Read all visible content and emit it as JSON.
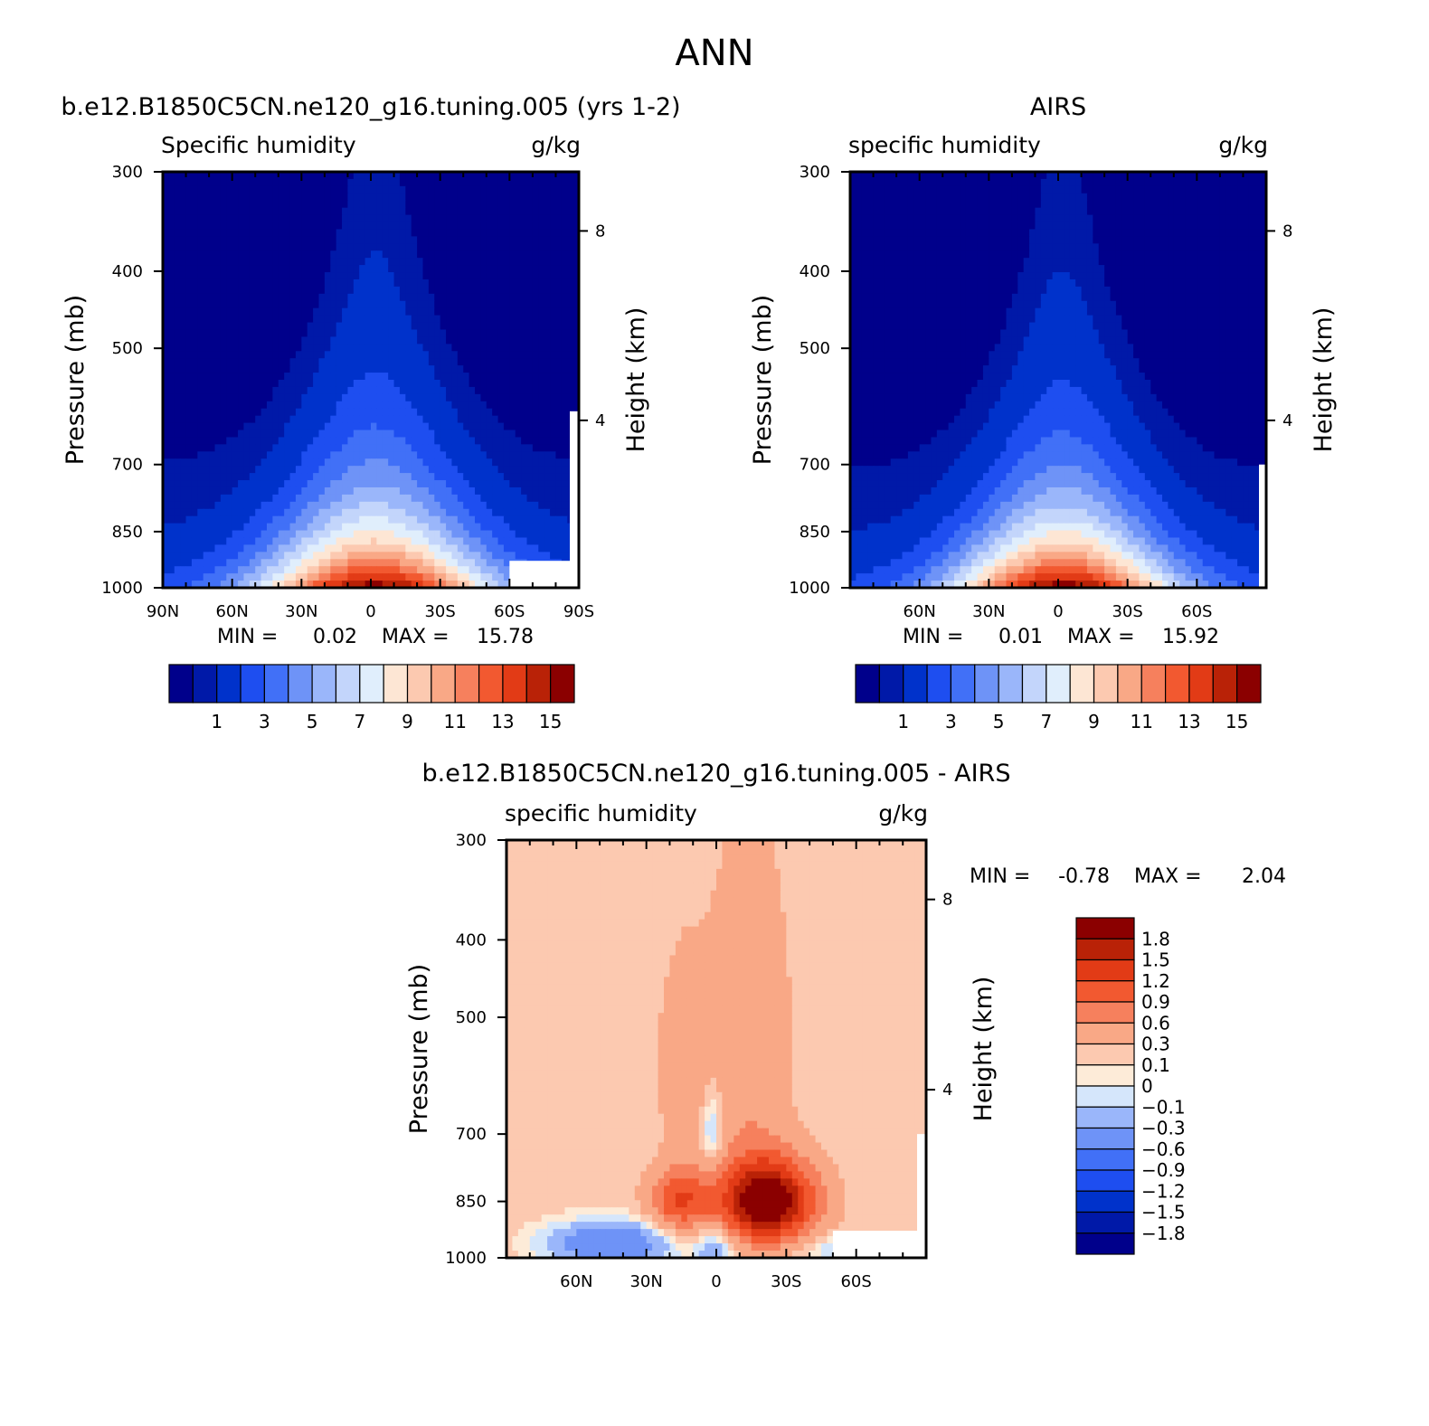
{
  "figure_title": "ANN",
  "chart_data": [
    {
      "type": "heatmap",
      "title": "b.e12.B1850C5CN.ne120_g16.tuning.005 (yrs 1-2)",
      "subtitle_left": "Specific humidity",
      "subtitle_right": "g/kg",
      "ylabel": "Pressure (mb)",
      "ylabel_right": "Height (km)",
      "xticks": [
        "90N",
        "60N",
        "30N",
        "0",
        "30S",
        "60S",
        "90S"
      ],
      "xtick_lats": [
        90,
        60,
        30,
        0,
        -30,
        -60,
        -90
      ],
      "yticks": [
        "300",
        "400",
        "500",
        "700",
        "850",
        "1000"
      ],
      "ytick_values": [
        300,
        400,
        500,
        700,
        850,
        1000
      ],
      "height_ticks": [
        "8",
        "4"
      ],
      "height_tick_pressures": [
        356,
        616
      ],
      "ylim": [
        300,
        1000
      ],
      "xlim": [
        90,
        -90
      ],
      "min_label": "MIN =",
      "min_value": "0.02",
      "max_label": "MAX =",
      "max_value": "15.78",
      "field": {
        "kind": "humidity",
        "peak": 15.78,
        "center_lat": -2,
        "width_surface": 30,
        "width_top": 5,
        "scale_height": 0.32,
        "floor": 0.02
      },
      "colorbar": {
        "orientation": "horizontal",
        "levels": [
          0.5,
          1,
          2,
          3,
          4,
          5,
          6,
          7,
          8,
          9,
          10,
          11,
          12,
          13,
          14,
          15
        ],
        "tick_labels": [
          "1",
          "3",
          "5",
          "7",
          "9",
          "11",
          "13",
          "15"
        ],
        "colors": [
          "#00008b",
          "#0019a8",
          "#0032cb",
          "#1e4ef0",
          "#4170f7",
          "#6e93f7",
          "#9ab6fa",
          "#c3d5fb",
          "#e0eefc",
          "#fde6d4",
          "#fcc9b0",
          "#f9a886",
          "#f6805d",
          "#f25930",
          "#e23b16",
          "#b92207",
          "#8b0000"
        ]
      }
    },
    {
      "type": "heatmap",
      "title": "AIRS",
      "subtitle_left": "specific humidity",
      "subtitle_right": "g/kg",
      "ylabel": "Pressure (mb)",
      "ylabel_right": "Height (km)",
      "xticks": [
        "60N",
        "30N",
        "0",
        "30S",
        "60S"
      ],
      "xtick_lats": [
        60,
        30,
        0,
        -30,
        -60
      ],
      "yticks": [
        "300",
        "400",
        "500",
        "700",
        "850",
        "1000"
      ],
      "ytick_values": [
        300,
        400,
        500,
        700,
        850,
        1000
      ],
      "height_ticks": [
        "8",
        "4"
      ],
      "height_tick_pressures": [
        356,
        616
      ],
      "ylim": [
        300,
        1000
      ],
      "xlim": [
        90,
        -90
      ],
      "min_label": "MIN =",
      "min_value": "0.01",
      "max_label": "MAX =",
      "max_value": "15.92",
      "field": {
        "kind": "humidity",
        "peak": 15.92,
        "center_lat": -2,
        "width_surface": 28,
        "width_top": 4,
        "scale_height": 0.31,
        "floor": 0.01
      },
      "colorbar": {
        "orientation": "horizontal",
        "levels": [
          0.5,
          1,
          2,
          3,
          4,
          5,
          6,
          7,
          8,
          9,
          10,
          11,
          12,
          13,
          14,
          15
        ],
        "tick_labels": [
          "1",
          "3",
          "5",
          "7",
          "9",
          "11",
          "13",
          "15"
        ],
        "colors": [
          "#00008b",
          "#0019a8",
          "#0032cb",
          "#1e4ef0",
          "#4170f7",
          "#6e93f7",
          "#9ab6fa",
          "#c3d5fb",
          "#e0eefc",
          "#fde6d4",
          "#fcc9b0",
          "#f9a886",
          "#f6805d",
          "#f25930",
          "#e23b16",
          "#b92207",
          "#8b0000"
        ]
      }
    },
    {
      "type": "heatmap",
      "title": "b.e12.B1850C5CN.ne120_g16.tuning.005 - AIRS",
      "subtitle_left": "specific humidity",
      "subtitle_right": "g/kg",
      "ylabel": "Pressure (mb)",
      "ylabel_right": "Height (km)",
      "xticks": [
        "60N",
        "30N",
        "0",
        "30S",
        "60S"
      ],
      "xtick_lats": [
        60,
        30,
        0,
        -30,
        -60
      ],
      "yticks": [
        "300",
        "400",
        "500",
        "700",
        "850",
        "1000"
      ],
      "ytick_values": [
        300,
        400,
        500,
        700,
        850,
        1000
      ],
      "height_ticks": [
        "8",
        "4"
      ],
      "height_tick_pressures": [
        356,
        616
      ],
      "ylim": [
        300,
        1000
      ],
      "xlim": [
        90,
        -90
      ],
      "min_label": "MIN =",
      "min_value": "-0.78",
      "max_label": "MAX =",
      "max_value": "2.04",
      "field": {
        "kind": "difference",
        "blobs": [
          {
            "lat": -22,
            "p": 850,
            "amp": 2.04,
            "slat": 14,
            "sp": 70
          },
          {
            "lat": 16,
            "p": 850,
            "amp": 1.0,
            "slat": 9,
            "sp": 55
          },
          {
            "lat": -14,
            "p": 560,
            "amp": 0.4,
            "slat": 12,
            "sp": 200
          },
          {
            "lat": 14,
            "p": 580,
            "amp": 0.3,
            "slat": 8,
            "sp": 130
          },
          {
            "lat": 2,
            "p": 690,
            "amp": -0.5,
            "slat": 3,
            "sp": 60
          },
          {
            "lat": 45,
            "p": 960,
            "amp": -0.78,
            "slat": 20,
            "sp": 45
          },
          {
            "lat": 0,
            "p": 970,
            "amp": -0.5,
            "slat": 6,
            "sp": 40
          },
          {
            "lat": -48,
            "p": 975,
            "amp": -0.3,
            "slat": 10,
            "sp": 30
          }
        ],
        "base": 0.18
      },
      "colorbar": {
        "orientation": "vertical",
        "levels": [
          -1.8,
          -1.5,
          -1.2,
          -0.9,
          -0.6,
          -0.3,
          -0.1,
          0,
          0.1,
          0.3,
          0.6,
          0.9,
          1.2,
          1.5,
          1.8
        ],
        "tick_labels": [
          "1.8",
          "1.5",
          "1.2",
          "0.9",
          "0.6",
          "0.3",
          "0.1",
          "0",
          "-0.1",
          "-0.3",
          "-0.6",
          "-0.9",
          "-1.2",
          "-1.5",
          "-1.8"
        ],
        "colors": [
          "#00008b",
          "#0019a8",
          "#0032cb",
          "#1e4ef0",
          "#4170f7",
          "#6e93f7",
          "#9ab6fa",
          "#d5e6fb",
          "#fdebd8",
          "#fcc9b0",
          "#f9a886",
          "#f6805d",
          "#f25930",
          "#e23b16",
          "#b92207",
          "#8b0000"
        ]
      }
    }
  ]
}
